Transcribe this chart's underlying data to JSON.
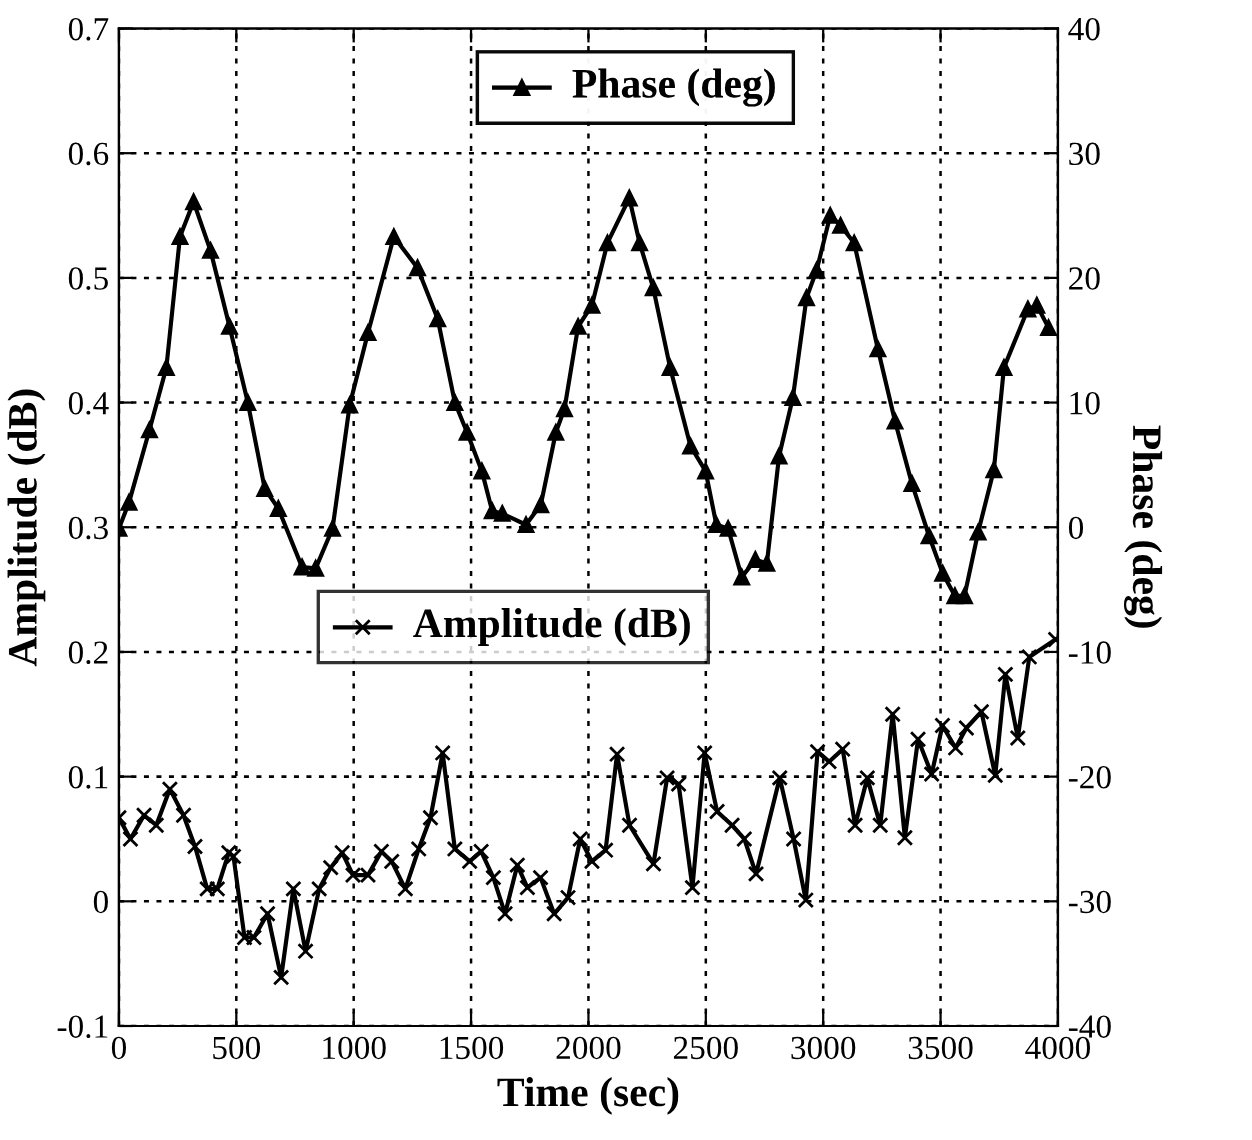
{
  "chart_data": {
    "type": "line",
    "xlabel": "Time (sec)",
    "ylabel": "Amplitude (dB)",
    "y2label": "Phase (deg)",
    "xlim": [
      0,
      4000
    ],
    "xticks": [
      0,
      500,
      1000,
      1500,
      2000,
      2500,
      3000,
      3500,
      4000
    ],
    "ylim": [
      -0.1,
      0.7
    ],
    "yticks": [
      -0.1,
      0,
      0.1,
      0.2,
      0.3,
      0.4,
      0.5,
      0.6,
      0.7
    ],
    "y2lim": [
      -40,
      40
    ],
    "y2ticks": [
      -40,
      -30,
      -20,
      -10,
      0,
      10,
      20,
      30,
      40
    ],
    "grid": true,
    "legend": "top",
    "line_style": "solid",
    "series": [
      {
        "name": "Phase (deg)",
        "color": "#000000",
        "axis": "y2",
        "marker": "triangle",
        "x": [
          0,
          43,
          130,
          202,
          260,
          318,
          390,
          471,
          549,
          621,
          679,
          780,
          838,
          910,
          983,
          1061,
          1171,
          1272,
          1358,
          1431,
          1483,
          1546,
          1590,
          1633,
          1734,
          1797,
          1861,
          1898,
          1956,
          2015,
          2081,
          2174,
          2218,
          2276,
          2348,
          2435,
          2499,
          2545,
          2595,
          2653,
          2711,
          2760,
          2812,
          2871,
          2929,
          2972,
          3030,
          3074,
          3132,
          3233,
          3306,
          3378,
          3451,
          3509,
          3561,
          3602,
          3660,
          3727,
          3770,
          3872,
          3910,
          3960
        ],
        "values": [
          -0.1,
          2,
          7.8,
          12.8,
          23.3,
          26.1,
          22.2,
          16.1,
          10,
          3.1,
          1.5,
          -3.2,
          -3.3,
          -0.1,
          9.8,
          15.6,
          23.3,
          20.8,
          16.7,
          10,
          7.6,
          4.5,
          1.3,
          1.1,
          0.2,
          1.8,
          7.6,
          9.5,
          16.1,
          17.8,
          22.8,
          26.4,
          22.8,
          19.2,
          12.8,
          6.5,
          4.5,
          0.2,
          -0.1,
          -4,
          -2.6,
          -2.9,
          5.7,
          10.4,
          18.4,
          20.6,
          25,
          24.2,
          22.8,
          14.3,
          8.5,
          3.5,
          -0.7,
          -3.7,
          -5.5,
          -5.5,
          -0.4,
          4.6,
          12.8,
          17.5,
          17.8,
          16
        ]
      },
      {
        "name": "Amplitude (dB)",
        "color": "#000000",
        "marker": "cross",
        "x": [
          0,
          49,
          107,
          159,
          217,
          275,
          324,
          376,
          419,
          468,
          488,
          535,
          575,
          633,
          691,
          743,
          795,
          853,
          902,
          951,
          997,
          1061,
          1118,
          1162,
          1220,
          1277,
          1327,
          1379,
          1431,
          1494,
          1543,
          1595,
          1645,
          1697,
          1740,
          1796,
          1854,
          1913,
          1965,
          2015,
          2073,
          2122,
          2175,
          2277,
          2335,
          2384,
          2443,
          2495,
          2548,
          2612,
          2664,
          2714,
          2815,
          2874,
          2926,
          2976,
          3025,
          3083,
          3136,
          3188,
          3243,
          3296,
          3348,
          3404,
          3462,
          3508,
          3564,
          3610,
          3674,
          3733,
          3776,
          3829,
          3878,
          3990
        ],
        "values": [
          0.067,
          0.05,
          0.069,
          0.061,
          0.09,
          0.069,
          0.044,
          0.01,
          0.01,
          0.039,
          0.036,
          -0.029,
          -0.029,
          -0.01,
          -0.061,
          0.01,
          -0.04,
          0.01,
          0.027,
          0.039,
          0.021,
          0.021,
          0.04,
          0.032,
          0.01,
          0.042,
          0.067,
          0.119,
          0.042,
          0.032,
          0.04,
          0.019,
          -0.01,
          0.029,
          0.011,
          0.019,
          -0.01,
          0.003,
          0.05,
          0.032,
          0.041,
          0.118,
          0.061,
          0.03,
          0.099,
          0.094,
          0.011,
          0.119,
          0.072,
          0.061,
          0.05,
          0.022,
          0.099,
          0.05,
          0.001,
          0.12,
          0.112,
          0.122,
          0.061,
          0.099,
          0.061,
          0.15,
          0.051,
          0.13,
          0.102,
          0.141,
          0.123,
          0.139,
          0.152,
          0.101,
          0.182,
          0.131,
          0.196,
          0.21
        ]
      }
    ]
  }
}
